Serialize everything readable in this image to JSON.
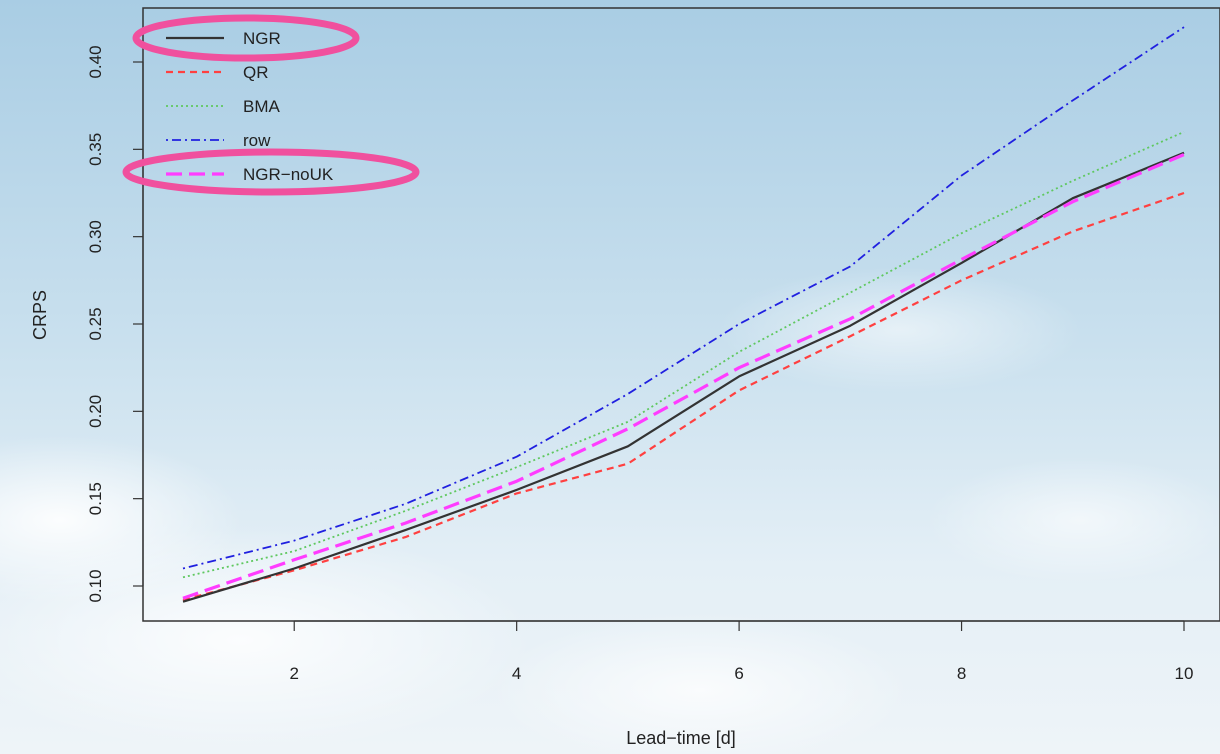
{
  "chart_data": {
    "type": "line",
    "xlabel": "Lead−time [d]",
    "ylabel": "CRPS",
    "xlim": [
      0.75,
      10.3
    ],
    "ylim": [
      0.08,
      0.425
    ],
    "x_ticks": [
      "2",
      "4",
      "6",
      "8",
      "10"
    ],
    "y_ticks": [
      "0.10",
      "0.15",
      "0.20",
      "0.25",
      "0.30",
      "0.35",
      "0.40"
    ],
    "legend_position": "top-left",
    "x": [
      1,
      2,
      3,
      4,
      5,
      6,
      7,
      8,
      9,
      10
    ],
    "series": [
      {
        "name": "NGR",
        "color": "#333333",
        "style": "solid",
        "values": [
          0.091,
          0.11,
          0.132,
          0.155,
          0.18,
          0.22,
          0.249,
          0.285,
          0.322,
          0.348
        ]
      },
      {
        "name": "QR",
        "color": "#ff4040",
        "style": "dashed",
        "values": [
          0.092,
          0.109,
          0.128,
          0.153,
          0.17,
          0.212,
          0.243,
          0.275,
          0.303,
          0.325
        ]
      },
      {
        "name": "BMA",
        "color": "#5fc85f",
        "style": "dotted",
        "values": [
          0.105,
          0.12,
          0.143,
          0.168,
          0.194,
          0.234,
          0.268,
          0.302,
          0.332,
          0.36
        ]
      },
      {
        "name": "row",
        "color": "#2020e0",
        "style": "dotdash",
        "values": [
          0.11,
          0.126,
          0.147,
          0.174,
          0.21,
          0.25,
          0.283,
          0.335,
          0.378,
          0.42
        ]
      },
      {
        "name": "NGR−noUK",
        "color": "#ff3cff",
        "style": "longdash",
        "values": [
          0.093,
          0.115,
          0.136,
          0.16,
          0.19,
          0.225,
          0.253,
          0.287,
          0.32,
          0.347
        ]
      }
    ],
    "highlighted_legend_entries": [
      "NGR",
      "NGR−noUK"
    ],
    "highlight_color": "#f0509e"
  }
}
